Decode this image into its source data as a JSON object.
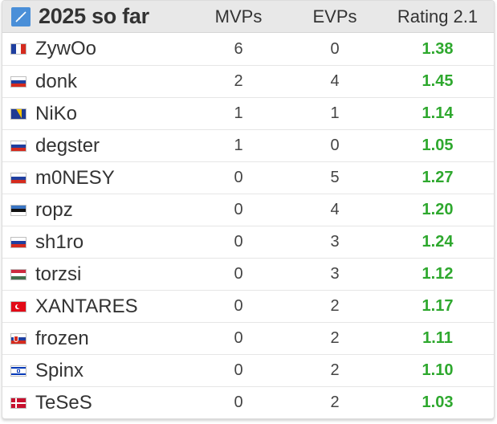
{
  "header": {
    "title": "2025 so far",
    "logo_icon": "hltv-logo-icon",
    "columns": [
      "MVPs",
      "EVPs",
      "Rating 2.1"
    ]
  },
  "colors": {
    "rating": "#2ea82e",
    "header_bg": "#e8e8e8",
    "text": "#333333"
  },
  "players": [
    {
      "name": "ZywOo",
      "flag": "france-flag-icon",
      "mvps": "6",
      "evps": "0",
      "rating": "1.38"
    },
    {
      "name": "donk",
      "flag": "russia-flag-icon",
      "mvps": "2",
      "evps": "4",
      "rating": "1.45"
    },
    {
      "name": "NiKo",
      "flag": "bosnia-flag-icon",
      "mvps": "1",
      "evps": "1",
      "rating": "1.14"
    },
    {
      "name": "degster",
      "flag": "russia-flag-icon",
      "mvps": "1",
      "evps": "0",
      "rating": "1.05"
    },
    {
      "name": "m0NESY",
      "flag": "russia-flag-icon",
      "mvps": "0",
      "evps": "5",
      "rating": "1.27"
    },
    {
      "name": "ropz",
      "flag": "estonia-flag-icon",
      "mvps": "0",
      "evps": "4",
      "rating": "1.20"
    },
    {
      "name": "sh1ro",
      "flag": "russia-flag-icon",
      "mvps": "0",
      "evps": "3",
      "rating": "1.24"
    },
    {
      "name": "torzsi",
      "flag": "hungary-flag-icon",
      "mvps": "0",
      "evps": "3",
      "rating": "1.12"
    },
    {
      "name": "XANTARES",
      "flag": "turkey-flag-icon",
      "mvps": "0",
      "evps": "2",
      "rating": "1.17"
    },
    {
      "name": "frozen",
      "flag": "slovakia-flag-icon",
      "mvps": "0",
      "evps": "2",
      "rating": "1.11"
    },
    {
      "name": "Spinx",
      "flag": "israel-flag-icon",
      "mvps": "0",
      "evps": "2",
      "rating": "1.10"
    },
    {
      "name": "TeSeS",
      "flag": "denmark-flag-icon",
      "mvps": "0",
      "evps": "2",
      "rating": "1.03"
    }
  ]
}
